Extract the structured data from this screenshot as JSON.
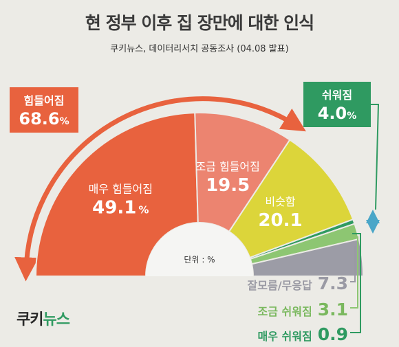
{
  "title": "현 정부 이후 집 장만에 대한 인식",
  "subtitle": "쿠키뉴스, 데이터리서치 공동조사 (04.08 발표)",
  "unit_label": "단위 : %",
  "callouts": {
    "hard": {
      "label": "힘들어짐",
      "value": "68.6",
      "unit": "%"
    },
    "easy": {
      "label": "쉬워짐",
      "value": "4.0",
      "unit": "%"
    }
  },
  "legend": {
    "unknown": {
      "label": "잘모름/무응답",
      "value": "7.3"
    },
    "slight": {
      "label": "조금 쉬워짐",
      "value": "3.1"
    },
    "very": {
      "label": "매우 쉬워짐",
      "value": "0.9"
    }
  },
  "brand": {
    "part1": "쿠키",
    "part2": "뉴스"
  },
  "colors": {
    "very_hard": "#e8623e",
    "slightly_hard": "#ec8470",
    "same": "#dcd53a",
    "slightly_easy": "#8dc672",
    "very_easy": "#2f9a61",
    "unknown": "#9c9ca6",
    "hard_accent": "#e8623e",
    "easy_accent": "#2f9a61",
    "background": "#ecebe6"
  },
  "chart_data": {
    "type": "pie",
    "layout": "semicircle-donut",
    "unit": "%",
    "categories": [
      "매우 힘들어짐",
      "조금 힘들어짐",
      "비슷함",
      "매우 쉬워짐",
      "조금 쉬워짐",
      "잘모름/무응답"
    ],
    "values": [
      49.1,
      19.5,
      20.1,
      0.9,
      3.1,
      7.3
    ],
    "label_values": [
      "49.1",
      "19.5",
      "20.1",
      "0.9",
      "3.1",
      "7.3"
    ],
    "label_units": [
      "%",
      "",
      "",
      "",
      "",
      ""
    ],
    "groups": [
      {
        "label": "힘들어짐",
        "value": 68.6
      },
      {
        "label": "쉬워짐",
        "value": 4.0
      }
    ]
  }
}
